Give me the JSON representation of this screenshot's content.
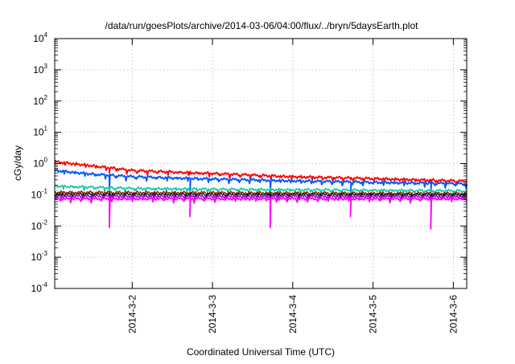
{
  "chart_data": {
    "type": "line",
    "title": "/data/run/goesPlots/archive/2014-03-06/04:00/flux/../bryn/5daysEarth.plot",
    "xlabel": "Coordinated Universal Time (UTC)",
    "ylabel": "cGy/day",
    "x_scale": "time",
    "y_scale": "log",
    "xlim": [
      "2014-03-01T00:50",
      "2014-03-06T04:00"
    ],
    "ylim": [
      0.0001,
      10000
    ],
    "grid": true,
    "legend": "none",
    "x_ticks": [
      {
        "x": "2014-03-02T00:00",
        "label": "2014-3-2"
      },
      {
        "x": "2014-03-03T00:00",
        "label": "2014-3-3"
      },
      {
        "x": "2014-03-04T00:00",
        "label": "2014-3-4"
      },
      {
        "x": "2014-03-05T00:00",
        "label": "2014-3-5"
      },
      {
        "x": "2014-03-06T00:00",
        "label": "2014-3-6"
      }
    ],
    "y_ticks": [
      {
        "value": 0.0001,
        "base": "10",
        "exp": "-4"
      },
      {
        "value": 0.001,
        "base": "10",
        "exp": "-3"
      },
      {
        "value": 0.01,
        "base": "10",
        "exp": "-2"
      },
      {
        "value": 0.1,
        "base": "10",
        "exp": "-1"
      },
      {
        "value": 1,
        "base": "10",
        "exp": "0"
      },
      {
        "value": 10,
        "base": "10",
        "exp": "1"
      },
      {
        "value": 100,
        "base": "10",
        "exp": "2"
      },
      {
        "value": 1000,
        "base": "10",
        "exp": "3"
      },
      {
        "value": 10000,
        "base": "10",
        "exp": "4"
      }
    ],
    "dip_times": [
      "2014-03-01T17:10",
      "2014-03-02T17:15",
      "2014-03-03T17:15",
      "2014-03-04T17:15",
      "2014-03-05T17:15"
    ],
    "series": [
      {
        "color": "#ff0000",
        "width": 1.8,
        "x": [
          "2014-03-01T00:50",
          "2014-03-01T12:00",
          "2014-03-02T00:00",
          "2014-03-03T00:00",
          "2014-03-04T00:00",
          "2014-03-05T00:00",
          "2014-03-06T00:00",
          "2014-03-06T04:00"
        ],
        "y": [
          1.15,
          0.85,
          0.6,
          0.48,
          0.38,
          0.33,
          0.28,
          0.27
        ],
        "dip_y": [
          0.5,
          0.45,
          0.35,
          0.3,
          0.26
        ]
      },
      {
        "color": "#0055ff",
        "width": 1.8,
        "x": [
          "2014-03-01T00:50",
          "2014-03-01T12:00",
          "2014-03-02T00:00",
          "2014-03-03T00:00",
          "2014-03-04T00:00",
          "2014-03-05T00:00",
          "2014-03-06T00:00",
          "2014-03-06T04:00"
        ],
        "y": [
          0.6,
          0.46,
          0.38,
          0.32,
          0.28,
          0.25,
          0.23,
          0.22
        ],
        "dip_y": [
          0.1,
          0.09,
          0.09,
          0.08,
          0.09
        ]
      },
      {
        "color": "#00c8a0",
        "width": 1.5,
        "x": [
          "2014-03-01T00:50",
          "2014-03-02T00:00",
          "2014-03-03T00:00",
          "2014-03-04T00:00",
          "2014-03-05T00:00",
          "2014-03-06T00:00",
          "2014-03-06T04:00"
        ],
        "y": [
          0.19,
          0.16,
          0.15,
          0.145,
          0.14,
          0.135,
          0.13
        ],
        "dip_y": [
          0.12,
          0.11,
          0.11,
          0.1,
          0.1
        ]
      },
      {
        "color": "#8b2500",
        "width": 1.5,
        "x": [
          "2014-03-01T00:50",
          "2014-03-06T04:00"
        ],
        "y": [
          0.12,
          0.11
        ],
        "dip_y": [
          0.1,
          0.1,
          0.09,
          0.09,
          0.09
        ]
      },
      {
        "color": "#000000",
        "width": 1.2,
        "x": [
          "2014-03-01T00:50",
          "2014-03-06T04:00"
        ],
        "y": [
          0.105,
          0.1
        ],
        "dip_y": [
          0.09,
          0.08,
          0.08,
          0.08,
          0.08
        ]
      },
      {
        "color": "#9400d3",
        "width": 1.5,
        "x": [
          "2014-03-01T00:50",
          "2014-03-06T04:00"
        ],
        "y": [
          0.09,
          0.088
        ],
        "dip_y": [
          0.07,
          0.06,
          0.06,
          0.06,
          0.06
        ]
      },
      {
        "color": "#ff00ff",
        "width": 1.8,
        "x": [
          "2014-03-01T00:50",
          "2014-03-06T04:00"
        ],
        "y": [
          0.075,
          0.075
        ],
        "dip_y": [
          0.009,
          0.02,
          0.009,
          0.02,
          0.008
        ]
      }
    ]
  }
}
